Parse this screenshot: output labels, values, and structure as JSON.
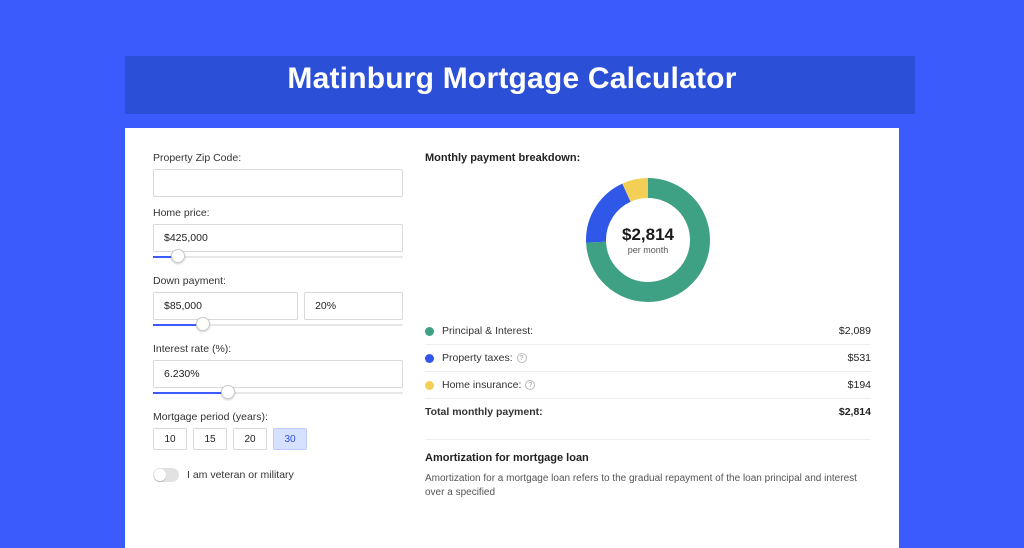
{
  "header": {
    "title": "Matinburg Mortgage Calculator"
  },
  "form": {
    "zip_label": "Property Zip Code:",
    "zip_value": "",
    "home_price_label": "Home price:",
    "home_price_value": "$425,000",
    "home_price_slider_pct": 10,
    "down_payment_label": "Down payment:",
    "down_payment_value": "$85,000",
    "down_payment_pct_value": "20%",
    "down_payment_slider_pct": 20,
    "interest_label": "Interest rate (%):",
    "interest_value": "6.230%",
    "interest_slider_pct": 30,
    "period_label": "Mortgage period (years):",
    "period_options": [
      "10",
      "15",
      "20",
      "30"
    ],
    "period_selected": "30",
    "veteran_label": "I am veteran or military",
    "veteran_on": false
  },
  "breakdown": {
    "title": "Monthly payment breakdown:",
    "center_amount": "$2,814",
    "center_sub": "per month",
    "donut": {
      "segments": [
        {
          "key": "principal",
          "value": 2089,
          "color": "#3fa184"
        },
        {
          "key": "taxes",
          "value": 531,
          "color": "#2f57e8"
        },
        {
          "key": "insurance",
          "value": 194,
          "color": "#f3cf55"
        }
      ],
      "thickness": 20,
      "radius": 52
    },
    "rows": [
      {
        "label": "Principal & Interest:",
        "value": "$2,089",
        "color": "#3fa184",
        "help": false
      },
      {
        "label": "Property taxes:",
        "value": "$531",
        "color": "#2f57e8",
        "help": true
      },
      {
        "label": "Home insurance:",
        "value": "$194",
        "color": "#f3cf55",
        "help": true
      }
    ],
    "total_label": "Total monthly payment:",
    "total_value": "$2,814"
  },
  "amortization": {
    "title": "Amortization for mortgage loan",
    "text": "Amortization for a mortgage loan refers to the gradual repayment of the loan principal and interest over a specified"
  }
}
